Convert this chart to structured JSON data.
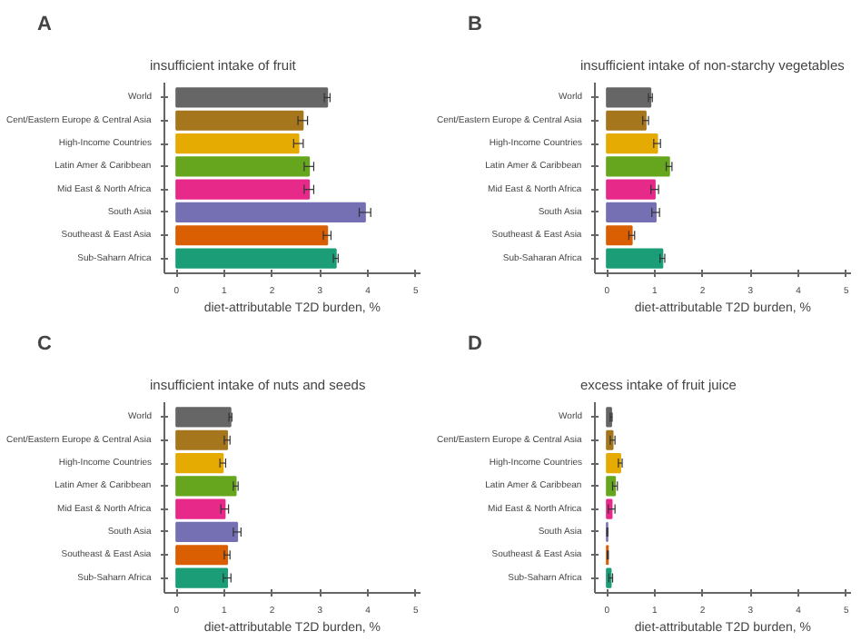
{
  "chart_data": [
    {
      "type": "bar",
      "orientation": "horizontal",
      "title": "insufficient intake of fruit",
      "annotations": [
        "A"
      ],
      "xlabel": "diet-attributable T2D burden, %",
      "categories": [
        "World",
        "Cent/Eastern Europe & Central Asia",
        "High-Income Countries",
        "Latin Amer & Caribbean",
        "Mid East & North Africa",
        "South Asia",
        "Southeast & East Asia",
        "Sub-Saharn Africa"
      ],
      "values": [
        3.15,
        2.64,
        2.55,
        2.77,
        2.77,
        3.94,
        3.15,
        3.33
      ],
      "errors": [
        0.06,
        0.1,
        0.1,
        0.1,
        0.1,
        0.12,
        0.08,
        0.05
      ],
      "colors": [
        "#666666",
        "#a6761d",
        "#e6ab02",
        "#66a61e",
        "#e7298a",
        "#7570b3",
        "#d95f02",
        "#1b9e77"
      ],
      "xlim": [
        -0.25,
        5.1
      ],
      "xticks": [
        0,
        1,
        2,
        3,
        4,
        5
      ],
      "grid": false
    },
    {
      "type": "bar",
      "orientation": "horizontal",
      "title": "insufficient intake of non-starchy vegetables",
      "annotations": [
        "B"
      ],
      "xlabel": "diet-attributable T2D burden, %",
      "categories": [
        "World",
        "Cent/Eastern Europe & Central Asia",
        "High-Income Countries",
        "Latin Amer & Caribbean",
        "Mid East & North Africa",
        "South Asia",
        "Southeast & East Asia",
        "Sub-Saharan Africa"
      ],
      "values": [
        0.91,
        0.81,
        1.05,
        1.3,
        1.0,
        1.02,
        0.52,
        1.16
      ],
      "errors": [
        0.04,
        0.06,
        0.07,
        0.06,
        0.08,
        0.08,
        0.06,
        0.05
      ],
      "colors": [
        "#666666",
        "#a6761d",
        "#e6ab02",
        "#66a61e",
        "#e7298a",
        "#7570b3",
        "#d95f02",
        "#1b9e77"
      ],
      "xlim": [
        -0.25,
        5.1
      ],
      "xticks": [
        0,
        1,
        2,
        3,
        4,
        5
      ],
      "grid": false
    },
    {
      "type": "bar",
      "orientation": "horizontal",
      "title": "insufficient intake of nuts and seeds",
      "annotations": [
        "C"
      ],
      "xlabel": "diet-attributable T2D burden, %",
      "categories": [
        "World",
        "Cent/Eastern Europe & Central Asia",
        "High-Income Countries",
        "Latin Amer & Caribbean",
        "Mid East & North Africa",
        "South Asia",
        "Southeast & East Asia",
        "Sub-Saharn Africa"
      ],
      "values": [
        1.13,
        1.06,
        0.97,
        1.24,
        1.01,
        1.27,
        1.06,
        1.06
      ],
      "errors": [
        0.03,
        0.06,
        0.06,
        0.05,
        0.08,
        0.08,
        0.06,
        0.08
      ],
      "colors": [
        "#666666",
        "#a6761d",
        "#e6ab02",
        "#66a61e",
        "#e7298a",
        "#7570b3",
        "#d95f02",
        "#1b9e77"
      ],
      "xlim": [
        -0.25,
        5.1
      ],
      "xticks": [
        0,
        1,
        2,
        3,
        4,
        5
      ],
      "grid": false
    },
    {
      "type": "bar",
      "orientation": "horizontal",
      "title": "excess intake of fruit juice",
      "annotations": [
        "D"
      ],
      "xlabel": "diet-attributable T2D burden, %",
      "categories": [
        "World",
        "Cent/Eastern Europe & Central Asia",
        "High-Income Countries",
        "Latin Amer & Caribbean",
        "Mid East & North Africa",
        "South Asia",
        "Southeast & East Asia",
        "Sub-Saharn Africa"
      ],
      "values": [
        0.09,
        0.12,
        0.28,
        0.17,
        0.1,
        0.01,
        0.02,
        0.08
      ],
      "errors": [
        0.02,
        0.05,
        0.04,
        0.05,
        0.07,
        0.01,
        0.01,
        0.04
      ],
      "colors": [
        "#666666",
        "#a6761d",
        "#e6ab02",
        "#66a61e",
        "#e7298a",
        "#7570b3",
        "#d95f02",
        "#1b9e77"
      ],
      "xlim": [
        -0.25,
        5.1
      ],
      "xticks": [
        0,
        1,
        2,
        3,
        4,
        5
      ],
      "grid": false
    }
  ]
}
